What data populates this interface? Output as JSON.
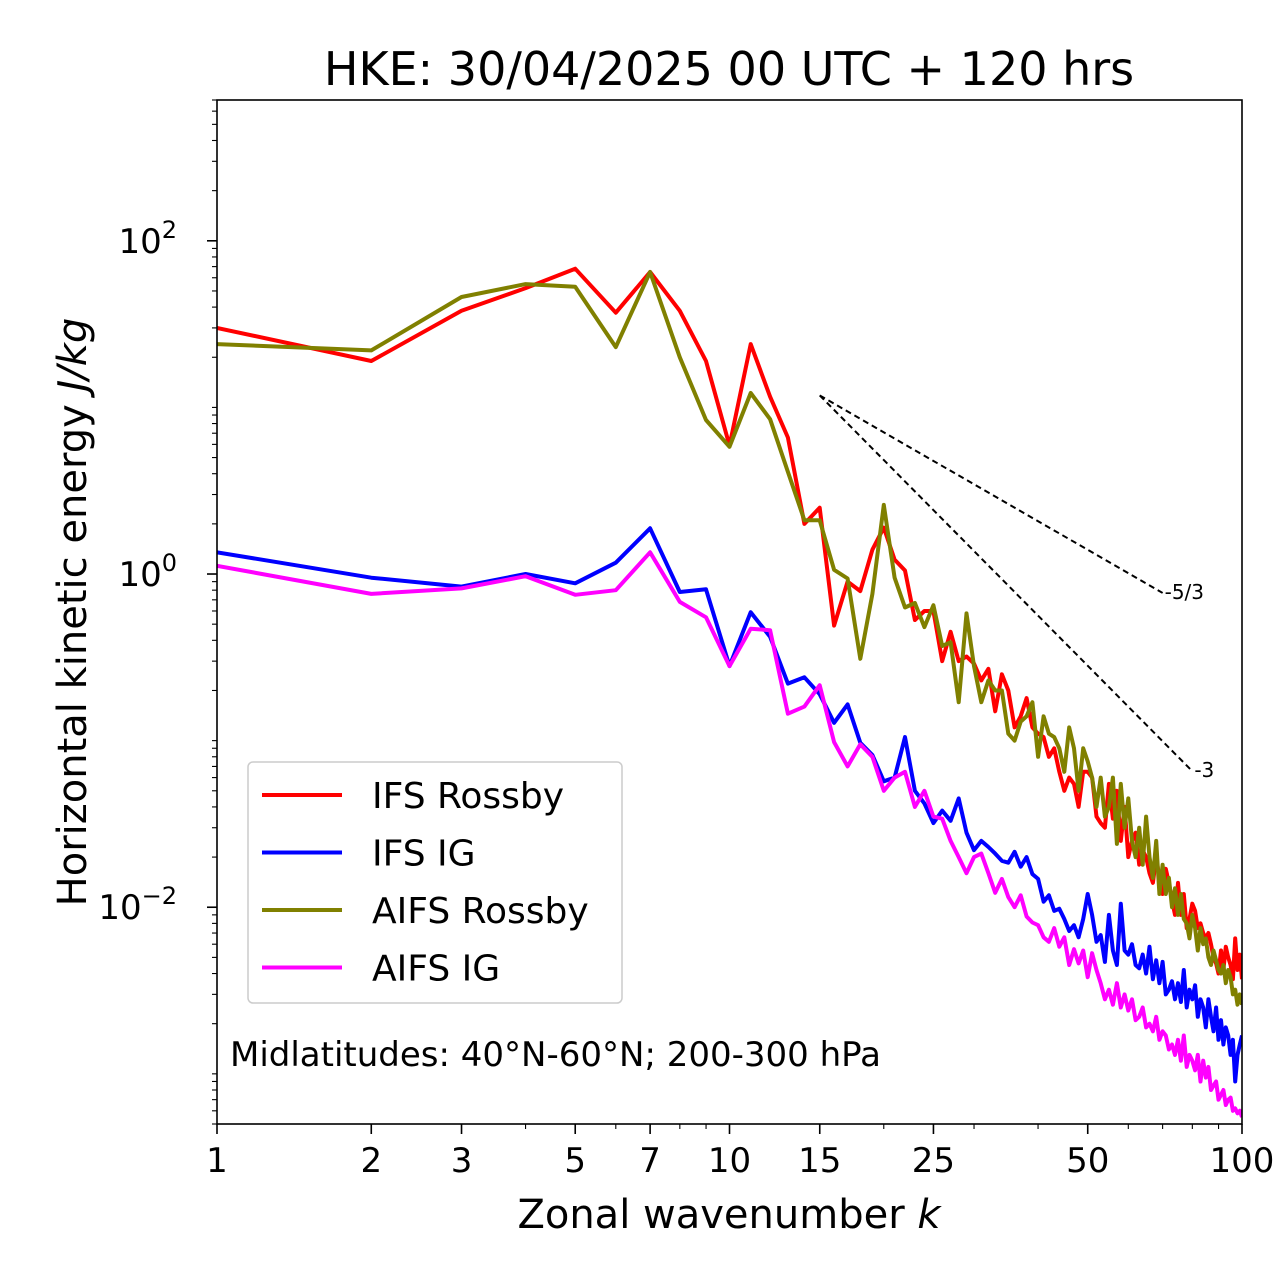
{
  "chart_data": {
    "type": "line",
    "title": "HKE: 30/04/2025 00 UTC + 120 hrs",
    "xlabel": "Zonal wavenumber",
    "xlabel_var": "k",
    "ylabel": "Horizontal kinetic energy",
    "ylabel_unit": "J/kg",
    "xscale": "log",
    "yscale": "log",
    "xlim": [
      1,
      100
    ],
    "ylim": [
      0.0005,
      700
    ],
    "x_ticks": [
      1,
      2,
      3,
      5,
      7,
      10,
      15,
      25,
      50,
      100
    ],
    "x_tick_labels": [
      "1",
      "2",
      "3",
      "5",
      "7",
      "10",
      "15",
      "25",
      "50",
      "100"
    ],
    "y_ticks": [
      {
        "value": 100,
        "base": "10",
        "exp": "2"
      },
      {
        "value": 1,
        "base": "10",
        "exp": "0"
      },
      {
        "value": 0.01,
        "base": "10",
        "exp": "−2"
      }
    ],
    "annotation": "Midlatitudes: 40°N-60°N; 200-300 hPa",
    "legend_position": "lower-left",
    "reference_lines": [
      {
        "label": "-5/3",
        "x": [
          15,
          70
        ],
        "y": [
          11.8,
          0.77
        ]
      },
      {
        "label": "-3",
        "x": [
          15,
          80
        ],
        "y": [
          11.8,
          0.0655
        ]
      }
    ],
    "series": [
      {
        "name": "IFS Rossby",
        "color": "#ff0000",
        "x": [
          1,
          2,
          3,
          4,
          5,
          6,
          7,
          8,
          9,
          10,
          11,
          12,
          13,
          14,
          15,
          16,
          17,
          18,
          19,
          20,
          21,
          22,
          23,
          24,
          25,
          26,
          27,
          28,
          29,
          30,
          31,
          32,
          33,
          34,
          35,
          36,
          37,
          38,
          39,
          40,
          41,
          42,
          43,
          44,
          45,
          46,
          47,
          48,
          49,
          50,
          51,
          52,
          53,
          54,
          55,
          56,
          57,
          58,
          59,
          60,
          61,
          62,
          63,
          64,
          65,
          66,
          67,
          68,
          69,
          70,
          71,
          72,
          73,
          74,
          75,
          76,
          77,
          78,
          79,
          80,
          81,
          82,
          83,
          84,
          85,
          86,
          87,
          88,
          89,
          90,
          91,
          92,
          93,
          94,
          95,
          96,
          97,
          98,
          99,
          100
        ],
        "y": [
          30,
          19,
          38,
          52,
          68,
          37,
          65,
          38,
          19,
          5.9,
          24,
          11.6,
          6.6,
          2.0,
          2.5,
          0.49,
          0.9,
          0.79,
          1.4,
          1.9,
          1.22,
          1.05,
          0.53,
          0.6,
          0.6,
          0.3,
          0.45,
          0.3,
          0.32,
          0.29,
          0.23,
          0.27,
          0.15,
          0.25,
          0.2,
          0.12,
          0.14,
          0.18,
          0.12,
          0.11,
          0.105,
          0.08,
          0.09,
          0.065,
          0.05,
          0.06,
          0.055,
          0.04,
          0.065,
          0.065,
          0.06,
          0.035,
          0.032,
          0.03,
          0.055,
          0.034,
          0.05,
          0.025,
          0.04,
          0.02,
          0.025,
          0.028,
          0.018,
          0.022,
          0.02,
          0.016,
          0.014,
          0.02,
          0.015,
          0.012,
          0.017,
          0.014,
          0.011,
          0.009,
          0.014,
          0.009,
          0.012,
          0.0075,
          0.0085,
          0.0105,
          0.0095,
          0.0075,
          0.008,
          0.007,
          0.0065,
          0.007,
          0.006,
          0.005,
          0.0046,
          0.004,
          0.0055,
          0.0042,
          0.0058,
          0.005,
          0.0045,
          0.0037,
          0.0065,
          0.0042,
          0.0052,
          0.0037
        ]
      },
      {
        "name": "IFS IG",
        "color": "#0000ff",
        "x": [
          1,
          2,
          3,
          4,
          5,
          6,
          7,
          8,
          9,
          10,
          11,
          12,
          13,
          14,
          15,
          16,
          17,
          18,
          19,
          20,
          21,
          22,
          23,
          24,
          25,
          26,
          27,
          28,
          29,
          30,
          31,
          32,
          33,
          34,
          35,
          36,
          37,
          38,
          39,
          40,
          41,
          42,
          43,
          44,
          45,
          46,
          47,
          48,
          49,
          50,
          51,
          52,
          53,
          54,
          55,
          56,
          57,
          58,
          59,
          60,
          61,
          62,
          63,
          64,
          65,
          66,
          67,
          68,
          69,
          70,
          71,
          72,
          73,
          74,
          75,
          76,
          77,
          78,
          79,
          80,
          81,
          82,
          83,
          84,
          85,
          86,
          87,
          88,
          89,
          90,
          91,
          92,
          93,
          94,
          95,
          96,
          97,
          98,
          99,
          100
        ],
        "y": [
          1.35,
          0.95,
          0.84,
          1.0,
          0.88,
          1.17,
          1.88,
          0.78,
          0.81,
          0.28,
          0.59,
          0.42,
          0.22,
          0.24,
          0.19,
          0.128,
          0.165,
          0.097,
          0.082,
          0.057,
          0.06,
          0.105,
          0.05,
          0.042,
          0.032,
          0.038,
          0.033,
          0.045,
          0.028,
          0.022,
          0.025,
          0.023,
          0.021,
          0.019,
          0.0185,
          0.0215,
          0.0175,
          0.02,
          0.0158,
          0.0148,
          0.0108,
          0.0118,
          0.0095,
          0.0098,
          0.0085,
          0.0072,
          0.0078,
          0.0066,
          0.0085,
          0.012,
          0.009,
          0.0062,
          0.0068,
          0.0047,
          0.009,
          0.0055,
          0.0045,
          0.0105,
          0.0055,
          0.0052,
          0.006,
          0.0045,
          0.0043,
          0.0052,
          0.004,
          0.0058,
          0.0037,
          0.0048,
          0.0035,
          0.0047,
          0.003,
          0.0032,
          0.0036,
          0.0028,
          0.0035,
          0.0027,
          0.0042,
          0.0025,
          0.0032,
          0.0028,
          0.0034,
          0.0022,
          0.0028,
          0.0025,
          0.0019,
          0.0028,
          0.0022,
          0.0018,
          0.0025,
          0.0016,
          0.0021,
          0.0015,
          0.0019,
          0.0017,
          0.0013,
          0.0016,
          0.0009,
          0.0013,
          0.0015,
          0.0017
        ]
      },
      {
        "name": "AIFS Rossby",
        "color": "#808000",
        "x": [
          1,
          2,
          3,
          4,
          5,
          6,
          7,
          8,
          9,
          10,
          11,
          12,
          13,
          14,
          15,
          16,
          17,
          18,
          19,
          20,
          21,
          22,
          23,
          24,
          25,
          26,
          27,
          28,
          29,
          30,
          31,
          32,
          33,
          34,
          35,
          36,
          37,
          38,
          39,
          40,
          41,
          42,
          43,
          44,
          45,
          46,
          47,
          48,
          49,
          50,
          51,
          52,
          53,
          54,
          55,
          56,
          57,
          58,
          59,
          60,
          61,
          62,
          63,
          64,
          65,
          66,
          67,
          68,
          69,
          70,
          71,
          72,
          73,
          74,
          75,
          76,
          77,
          78,
          79,
          80,
          81,
          82,
          83,
          84,
          85,
          86,
          87,
          88,
          89,
          90,
          91,
          92,
          93,
          94,
          95,
          96,
          97,
          98,
          99,
          100
        ],
        "y": [
          24,
          22,
          46,
          55,
          53,
          23,
          65,
          20,
          8.4,
          5.8,
          12.2,
          8.5,
          4.1,
          2.1,
          2.1,
          1.06,
          0.94,
          0.31,
          0.76,
          2.6,
          0.95,
          0.63,
          0.67,
          0.48,
          0.65,
          0.37,
          0.39,
          0.17,
          0.58,
          0.28,
          0.17,
          0.23,
          0.2,
          0.2,
          0.11,
          0.1,
          0.13,
          0.14,
          0.17,
          0.08,
          0.14,
          0.11,
          0.105,
          0.09,
          0.065,
          0.12,
          0.09,
          0.05,
          0.09,
          0.075,
          0.06,
          0.04,
          0.06,
          0.035,
          0.04,
          0.06,
          0.024,
          0.055,
          0.03,
          0.045,
          0.025,
          0.02,
          0.03,
          0.018,
          0.035,
          0.02,
          0.015,
          0.025,
          0.012,
          0.018,
          0.012,
          0.015,
          0.01,
          0.013,
          0.009,
          0.012,
          0.0085,
          0.008,
          0.0065,
          0.009,
          0.0075,
          0.0055,
          0.0075,
          0.006,
          0.0065,
          0.005,
          0.0045,
          0.0055,
          0.0048,
          0.0042,
          0.004,
          0.0045,
          0.0035,
          0.0042,
          0.0038,
          0.003,
          0.0032,
          0.0026,
          0.003,
          0.0026
        ]
      },
      {
        "name": "AIFS IG",
        "color": "#ff00ff",
        "x": [
          1,
          2,
          3,
          4,
          5,
          6,
          7,
          8,
          9,
          10,
          11,
          12,
          13,
          14,
          15,
          16,
          17,
          18,
          19,
          20,
          21,
          22,
          23,
          24,
          25,
          26,
          27,
          28,
          29,
          30,
          31,
          32,
          33,
          34,
          35,
          36,
          37,
          38,
          39,
          40,
          41,
          42,
          43,
          44,
          45,
          46,
          47,
          48,
          49,
          50,
          51,
          52,
          53,
          54,
          55,
          56,
          57,
          58,
          59,
          60,
          61,
          62,
          63,
          64,
          65,
          66,
          67,
          68,
          69,
          70,
          71,
          72,
          73,
          74,
          75,
          76,
          77,
          78,
          79,
          80,
          81,
          82,
          83,
          84,
          85,
          86,
          87,
          88,
          89,
          90,
          91,
          92,
          93,
          94,
          95,
          96,
          97,
          98,
          99,
          100
        ],
        "y": [
          1.12,
          0.76,
          0.82,
          0.97,
          0.75,
          0.8,
          1.35,
          0.68,
          0.55,
          0.28,
          0.47,
          0.46,
          0.145,
          0.16,
          0.215,
          0.098,
          0.07,
          0.095,
          0.08,
          0.05,
          0.06,
          0.065,
          0.04,
          0.05,
          0.035,
          0.034,
          0.025,
          0.02,
          0.016,
          0.02,
          0.021,
          0.016,
          0.0122,
          0.0148,
          0.0115,
          0.01,
          0.0118,
          0.0088,
          0.0081,
          0.0078,
          0.0066,
          0.0062,
          0.0075,
          0.0058,
          0.0066,
          0.0045,
          0.0056,
          0.0046,
          0.0055,
          0.0038,
          0.0053,
          0.0042,
          0.0035,
          0.0028,
          0.0032,
          0.0026,
          0.0035,
          0.0025,
          0.003,
          0.0024,
          0.0028,
          0.0021,
          0.0022,
          0.0025,
          0.0019,
          0.002,
          0.0018,
          0.0022,
          0.0016,
          0.0018,
          0.0017,
          0.0014,
          0.0015,
          0.0013,
          0.0016,
          0.0012,
          0.0017,
          0.0011,
          0.0013,
          0.0012,
          0.00105,
          0.0013,
          0.0009,
          0.0012,
          0.00095,
          0.0011,
          0.0008,
          0.00085,
          0.0009,
          0.0007,
          0.00075,
          0.0008,
          0.00065,
          0.0007,
          0.00072,
          0.0006,
          0.00062,
          0.00058,
          0.0006,
          0.00055
        ]
      }
    ]
  }
}
